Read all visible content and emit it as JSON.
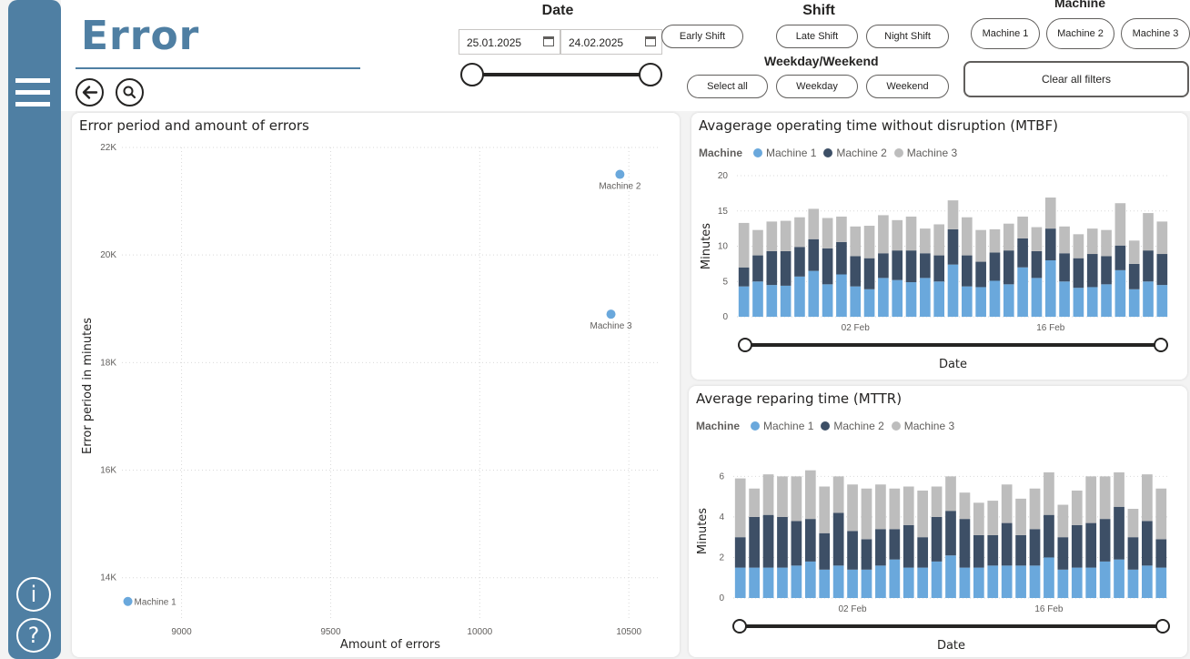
{
  "page": {
    "title": "Error"
  },
  "filters": {
    "date": {
      "title": "Date",
      "start": "25.01.2025",
      "end": "24.02.2025"
    },
    "shift": {
      "title": "Shift",
      "options": [
        "Early Shift",
        "Late Shift",
        "Night Shift"
      ]
    },
    "weekday": {
      "title": "Weekday/Weekend",
      "options": [
        "Select all",
        "Weekday",
        "Weekend"
      ]
    },
    "machine": {
      "title": "Machine",
      "options": [
        "Machine 1",
        "Machine 2",
        "Machine 3"
      ]
    },
    "clear_label": "Clear all filters"
  },
  "colors": {
    "machine1": "#6aa8dc",
    "machine2": "#3d4f66",
    "machine3": "#bdbdbd",
    "accent": "#4f7fa3"
  },
  "icons": [
    "menu-icon",
    "info-icon",
    "help-icon",
    "back-arrow-icon",
    "search-icon",
    "calendar-icon"
  ],
  "chart_data": [
    {
      "type": "scatter",
      "title": "Error period and amount of errors",
      "xlabel": "Amount of errors",
      "ylabel": "Error period in minutes",
      "xlim": [
        8800,
        10600
      ],
      "ylim": [
        13200,
        22000
      ],
      "xticks": [
        9000,
        9500,
        10000,
        10500
      ],
      "yticks": [
        14000,
        16000,
        18000,
        20000,
        22000
      ],
      "yticklabels": [
        "14K",
        "16K",
        "18K",
        "20K",
        "22K"
      ],
      "grid": true,
      "points": [
        {
          "label": "Machine 1",
          "x": 8820,
          "y": 13560
        },
        {
          "label": "Machine 2",
          "x": 10470,
          "y": 21500
        },
        {
          "label": "Machine 3",
          "x": 10440,
          "y": 18900
        }
      ]
    },
    {
      "type": "bar",
      "stacked": true,
      "title": "Avagerage operating time without disruption (MTBF)",
      "legend_title": "Machine",
      "xlabel": "Date",
      "ylabel": "Minutes",
      "ylim": [
        0,
        20
      ],
      "yticks": [
        0,
        5,
        10,
        15,
        20
      ],
      "xtick_labels": [
        {
          "index": 8,
          "label": "02 Feb"
        },
        {
          "index": 22,
          "label": "16 Feb"
        }
      ],
      "categories": [
        "25 Jan",
        "26 Jan",
        "27 Jan",
        "28 Jan",
        "29 Jan",
        "30 Jan",
        "31 Jan",
        "01 Feb",
        "02 Feb",
        "03 Feb",
        "04 Feb",
        "05 Feb",
        "06 Feb",
        "07 Feb",
        "08 Feb",
        "09 Feb",
        "10 Feb",
        "11 Feb",
        "12 Feb",
        "13 Feb",
        "14 Feb",
        "15 Feb",
        "16 Feb",
        "17 Feb",
        "18 Feb",
        "19 Feb",
        "20 Feb",
        "21 Feb",
        "22 Feb",
        "23 Feb",
        "24 Feb"
      ],
      "series": [
        {
          "name": "Machine 1",
          "values": [
            4.3,
            5.0,
            4.5,
            4.4,
            5.7,
            6.5,
            4.6,
            6.0,
            4.3,
            3.9,
            5.5,
            5.2,
            4.9,
            5.5,
            5.0,
            7.4,
            4.3,
            4.2,
            5.1,
            4.6,
            7.0,
            5.5,
            8.0,
            5.0,
            4.1,
            4.2,
            4.6,
            6.6,
            3.9,
            5.0,
            4.5
          ]
        },
        {
          "name": "Machine 2",
          "values": [
            2.7,
            3.7,
            4.8,
            4.9,
            4.2,
            4.5,
            5.1,
            4.6,
            4.3,
            4.4,
            3.5,
            4.2,
            4.5,
            3.5,
            3.7,
            5.0,
            4.4,
            3.6,
            4.0,
            4.8,
            4.1,
            3.8,
            4.5,
            4.0,
            4.2,
            4.7,
            4.0,
            3.5,
            3.6,
            4.4,
            4.4
          ]
        },
        {
          "name": "Machine 3",
          "values": [
            6.3,
            3.6,
            4.2,
            4.3,
            4.2,
            4.3,
            4.3,
            3.6,
            4.2,
            4.6,
            5.4,
            4.3,
            4.8,
            3.5,
            4.4,
            4.1,
            5.4,
            4.5,
            3.3,
            3.8,
            3.1,
            3.4,
            4.4,
            3.8,
            3.4,
            3.6,
            3.7,
            6.0,
            3.3,
            5.3,
            4.6
          ]
        }
      ]
    },
    {
      "type": "bar",
      "stacked": true,
      "title": "Average reparing time (MTTR)",
      "legend_title": "Machine",
      "xlabel": "Date",
      "ylabel": "Minutes",
      "ylim": [
        0,
        6.6
      ],
      "yticks": [
        0,
        2,
        4,
        6
      ],
      "xtick_labels": [
        {
          "index": 8,
          "label": "02 Feb"
        },
        {
          "index": 22,
          "label": "16 Feb"
        }
      ],
      "categories": [
        "25 Jan",
        "26 Jan",
        "27 Jan",
        "28 Jan",
        "29 Jan",
        "30 Jan",
        "31 Jan",
        "01 Feb",
        "02 Feb",
        "03 Feb",
        "04 Feb",
        "05 Feb",
        "06 Feb",
        "07 Feb",
        "08 Feb",
        "09 Feb",
        "10 Feb",
        "11 Feb",
        "12 Feb",
        "13 Feb",
        "14 Feb",
        "15 Feb",
        "16 Feb",
        "17 Feb",
        "18 Feb",
        "19 Feb",
        "20 Feb",
        "21 Feb",
        "22 Feb",
        "23 Feb",
        "24 Feb"
      ],
      "series": [
        {
          "name": "Machine 1",
          "values": [
            1.5,
            1.5,
            1.5,
            1.5,
            1.6,
            1.8,
            1.4,
            1.6,
            1.4,
            1.4,
            1.6,
            1.9,
            1.5,
            1.5,
            1.8,
            2.1,
            1.5,
            1.5,
            1.6,
            1.6,
            1.6,
            1.6,
            2.0,
            1.4,
            1.5,
            1.5,
            1.8,
            1.9,
            1.4,
            1.6,
            1.5
          ]
        },
        {
          "name": "Machine 2",
          "values": [
            1.5,
            2.5,
            2.6,
            2.5,
            2.2,
            2.1,
            1.8,
            2.6,
            1.9,
            1.5,
            1.8,
            1.5,
            2.1,
            1.5,
            2.2,
            2.2,
            2.4,
            1.6,
            1.5,
            2.1,
            1.5,
            1.8,
            2.1,
            1.6,
            2.1,
            2.2,
            2.1,
            2.6,
            1.6,
            2.2,
            1.4
          ]
        },
        {
          "name": "Machine 3",
          "values": [
            2.9,
            1.4,
            2.0,
            2.0,
            2.2,
            2.4,
            2.3,
            1.8,
            2.3,
            2.5,
            2.2,
            2.0,
            1.9,
            2.3,
            1.5,
            1.7,
            1.3,
            1.6,
            1.7,
            1.9,
            1.8,
            2.0,
            2.1,
            1.6,
            1.7,
            2.3,
            2.1,
            1.7,
            1.4,
            2.3,
            2.5
          ]
        }
      ]
    }
  ]
}
